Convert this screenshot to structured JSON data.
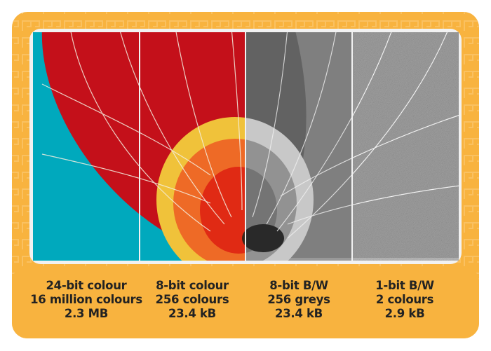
{
  "colors": {
    "background": "#f8b33f",
    "frame": "#f2f2f2",
    "sky": "#00a9bd",
    "text": "#222222"
  },
  "panels": [
    {
      "mode": "24-bit colour",
      "depth": "16 million colours",
      "size": "2.3 MB"
    },
    {
      "mode": "8-bit colour",
      "depth": "256 colours",
      "size": "23.4 kB"
    },
    {
      "mode": "8-bit B/W",
      "depth": "256 greys",
      "size": "23.4 kB"
    },
    {
      "mode": "1-bit B/W",
      "depth": "2 colours",
      "size": "2.9 kB"
    }
  ]
}
